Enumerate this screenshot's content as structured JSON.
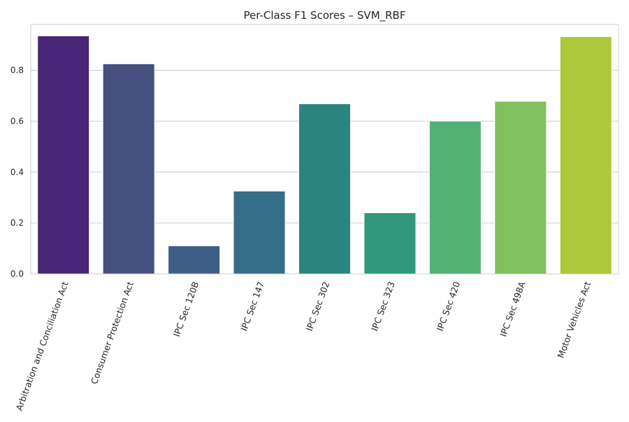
{
  "chart_data": {
    "type": "bar",
    "title": "Per-Class F1 Scores – SVM_RBF",
    "xlabel": "",
    "ylabel": "",
    "categories": [
      "Arbitration and Conciliation Act",
      "Consumer Protection Act",
      "IPC Sec 120B",
      "IPC Sec 147",
      "IPC Sec 302",
      "IPC Sec 323",
      "IPC Sec 420",
      "IPC Sec 498A",
      "Motor Vehicles Act"
    ],
    "values": [
      0.935,
      0.825,
      0.11,
      0.325,
      0.668,
      0.24,
      0.6,
      0.678,
      0.932
    ],
    "colors": [
      "#482576",
      "#46507e",
      "#3d5e86",
      "#346f87",
      "#2b8480",
      "#33977b",
      "#53b075",
      "#80c05d",
      "#adc83a"
    ],
    "ylim": [
      0,
      0.98
    ],
    "yticks": [
      0.0,
      0.2,
      0.4,
      0.6,
      0.8
    ],
    "ytick_labels": [
      "0.0",
      "0.2",
      "0.4",
      "0.6",
      "0.8"
    ],
    "grid": true,
    "grid_axis": "y",
    "legend": "none"
  }
}
